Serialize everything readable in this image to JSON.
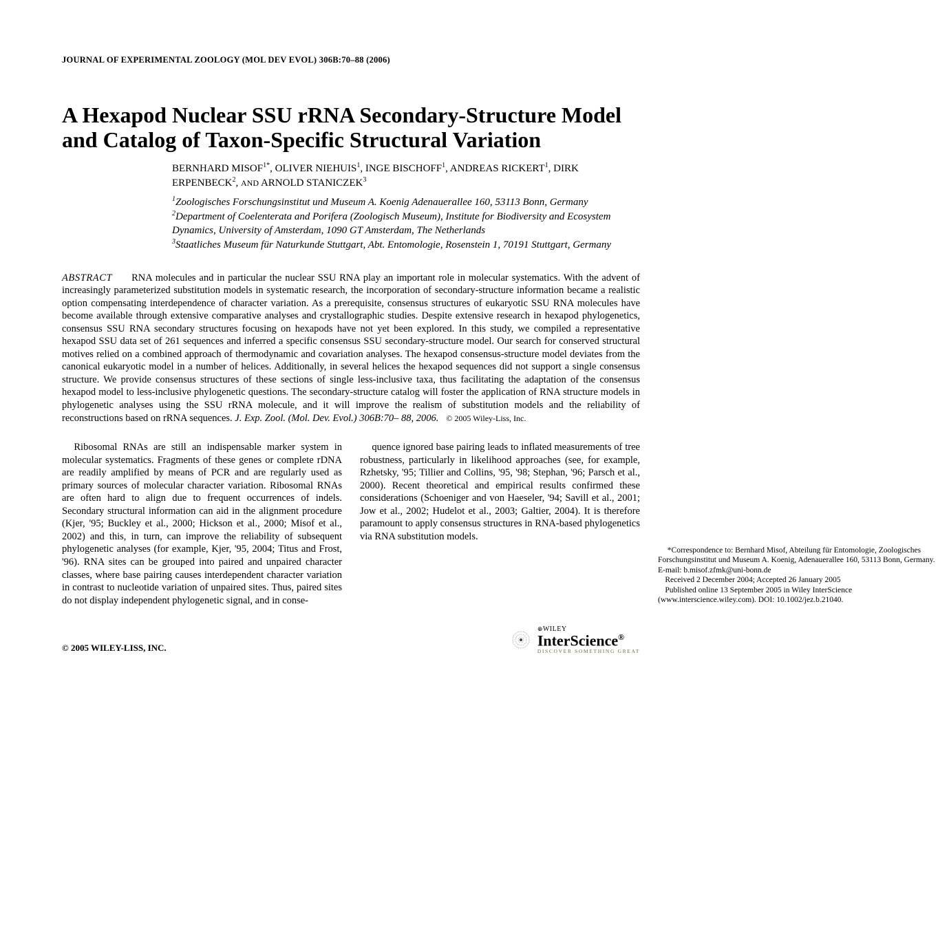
{
  "running_head": "JOURNAL OF EXPERIMENTAL ZOOLOGY (MOL DEV EVOL) 306B:70–88 (2006)",
  "title": "A Hexapod Nuclear SSU rRNA Secondary-Structure Model and Catalog of Taxon-Specific Structural Variation",
  "authors_html": "BERNHARD MISOF<sup>1*</sup>, OLIVER NIEHUIS<sup>1</sup>, INGE BISCHOFF<sup>1</sup>, ANDREAS RICKERT<sup>1</sup>, DIRK ERPENBECK<sup>2</sup>, <span style='font-size:12px'>AND</span> ARNOLD STANICZEK<sup>3</sup>",
  "affiliations": [
    "<sup>1</sup>Zoologisches Forschungsinstitut und Museum A. Koenig Adenauerallee 160, 53113 Bonn, Germany",
    "<sup>2</sup>Department of Coelenterata and Porifera (Zoologisch Museum), Institute for Biodiversity and Ecosystem Dynamics, University of Amsterdam, 1090 GT Amsterdam, The Netherlands",
    "<sup>3</sup>Staatliches Museum für Naturkunde Stuttgart, Abt. Entomologie, Rosenstein 1, 70191 Stuttgart, Germany"
  ],
  "abstract_label": "ABSTRACT",
  "abstract_body": "RNA molecules and in particular the nuclear SSU RNA play an important role in molecular systematics. With the advent of increasingly parameterized substitution models in systematic research, the incorporation of secondary-structure information became a realistic option compensating interdependence of character variation. As a prerequisite, consensus structures of eukaryotic SSU RNA molecules have become available through extensive comparative analyses and crystallographic studies. Despite extensive research in hexapod phylogenetics, consensus SSU RNA secondary structures focusing on hexapods have not yet been explored. In this study, we compiled a representative hexapod SSU data set of 261 sequences and inferred a specific consensus SSU secondary-structure model. Our search for conserved structural motives relied on a combined approach of thermodynamic and covariation analyses. The hexapod consensus-structure model deviates from the canonical eukaryotic model in a number of helices. Additionally, in several helices the hexapod sequences did not support a single consensus structure. We provide consensus structures of these sections of single less-inclusive taxa, thus facilitating the adaptation of the consensus hexapod model to less-inclusive phylogenetic questions. The secondary-structure catalog will foster the application of RNA structure models in phylogenetic analyses using the SSU rRNA molecule, and it will improve the realism of substitution models and the reliability of reconstructions based on rRNA sequences. ",
  "abstract_cite": "J. Exp. Zool. (Mol. Dev. Evol.) 306B:70– 88, 2006.",
  "abstract_copy": "© 2005 Wiley-Liss, Inc.",
  "col_left": "Ribosomal RNAs are still an indispensable marker system in molecular systematics. Fragments of these genes or complete rDNA are readily amplified by means of PCR and are regularly used as primary sources of molecular character variation. Ribosomal RNAs are often hard to align due to frequent occurrences of indels. Secondary structural information can aid in the alignment procedure (Kjer, '95; Buckley et al., 2000; Hickson et al., 2000; Misof et al., 2002) and this, in turn, can improve the reliability of subsequent phylogenetic analyses (for example, Kjer, '95, 2004; Titus and Frost, '96). RNA sites can be grouped into paired and unpaired character classes, where base pairing causes interdependent character variation in contrast to nucleotide variation of unpaired sites. Thus, paired sites do not display independent phylogenetic signal, and in conse-",
  "col_right": "quence ignored base pairing leads to inflated measurements of tree robustness, particularly in likelihood approaches (see, for example, Rzhetsky, '95; Tillier and Collins, '95, '98; Stephan, '96; Parsch et al., 2000). Recent theoretical and empirical results confirmed these considerations (Schoeniger and von Haeseler, '94; Savill et al., 2001; Jow et al., 2002; Hudelot et al., 2003; Galtier, 2004). It is therefore paramount to apply consensus structures in RNA-based phylogenetics via RNA substitution models.",
  "footnotes": [
    "*Correspondence to: Bernhard Misof, Abteilung für Entomologie, Zoologisches Forschungsinstitut und Museum A. Koenig, Adenauerallee 160, 53113 Bonn, Germany. E-mail: b.misof.zfmk@uni-bonn.de",
    "Received 2 December 2004; Accepted 26 January 2005",
    "Published online 13 September 2005 in Wiley InterScience (www.interscience.wiley.com). DOI: 10.1002/jez.b.21040."
  ],
  "copyright_footer": "© 2005 WILEY-LISS, INC.",
  "logo": {
    "wiley": "WILEY",
    "name": "InterScience",
    "tagline": "DISCOVER SOMETHING GREAT"
  },
  "colors": {
    "text": "#000000",
    "bg": "#ffffff",
    "tagline": "#6a6f4c"
  }
}
